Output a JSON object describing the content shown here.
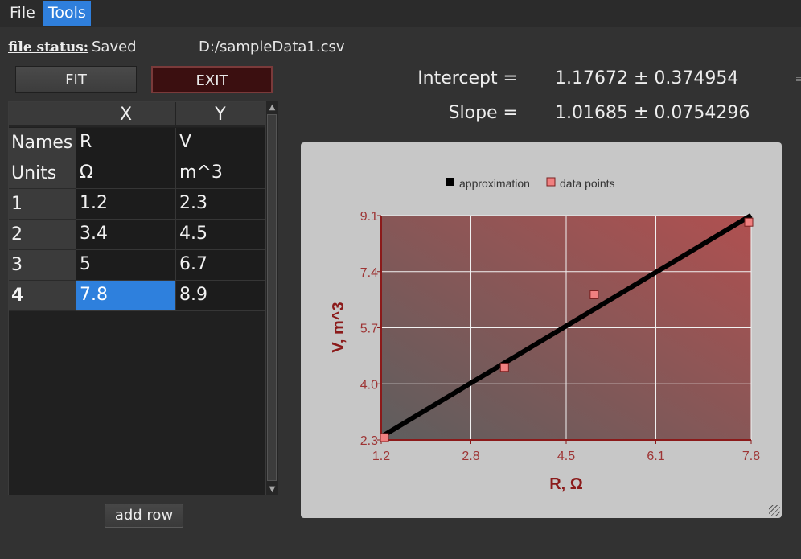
{
  "menu": {
    "file": "File",
    "tools": "Tools"
  },
  "status": {
    "label": "file status:",
    "value": "Saved",
    "path": "D:/sampleData1.csv"
  },
  "buttons": {
    "fit": "FIT",
    "exit": "EXIT",
    "add_row": "add row"
  },
  "results": {
    "intercept_label": "Intercept =",
    "intercept_value": "1.17672 ± 0.374954",
    "slope_label": "Slope =",
    "slope_value": "1.01685 ± 0.0754296"
  },
  "table": {
    "col_headers": [
      "X",
      "Y"
    ],
    "rows": [
      {
        "header": "Names",
        "x": "R",
        "y": "V"
      },
      {
        "header": "Units",
        "x": "Ω",
        "y": "m^3"
      },
      {
        "header": "1",
        "x": "1.2",
        "y": "2.3"
      },
      {
        "header": "2",
        "x": "3.4",
        "y": "4.5"
      },
      {
        "header": "3",
        "x": "5",
        "y": "6.7"
      },
      {
        "header": "4",
        "x": "7.8",
        "y": "8.9"
      }
    ],
    "selected_cell": "4-x"
  },
  "chart_data": {
    "type": "scatter",
    "legend": [
      "approximation",
      "data points"
    ],
    "legend_placement": "top-center",
    "xlabel": "R, Ω",
    "ylabel": "V, m^3",
    "xlim": [
      1.2,
      7.8
    ],
    "ylim": [
      2.3,
      9.1
    ],
    "xticks": [
      "1.2",
      "2.8",
      "4.5",
      "6.1",
      "7.8"
    ],
    "yticks": [
      "2.3",
      "4.0",
      "5.7",
      "7.4",
      "9.1"
    ],
    "grid": true,
    "series": [
      {
        "name": "approximation",
        "kind": "line",
        "color": "#000000",
        "x": [
          1.2,
          7.8
        ],
        "y": [
          2.397,
          9.108
        ]
      },
      {
        "name": "data points",
        "kind": "scatter",
        "color": "#f08080",
        "x": [
          1.2,
          3.4,
          5,
          7.8
        ],
        "y": [
          2.3,
          4.5,
          6.7,
          8.9
        ]
      }
    ],
    "colors": {
      "axis": "#8b1a1a",
      "plot_bg_left": "#5e5e5e",
      "plot_bg_right": "#b05050"
    }
  }
}
